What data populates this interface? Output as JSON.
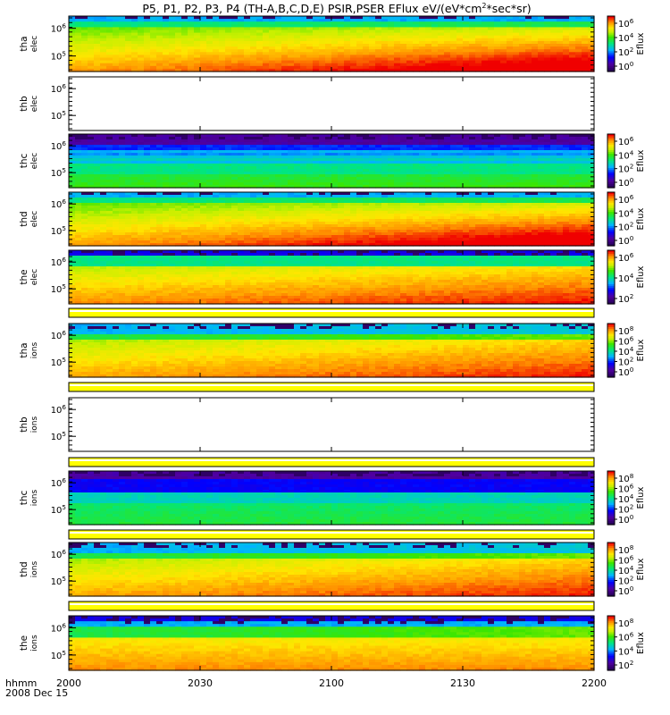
{
  "title": "P5, P1, P2, P3, P4 (TH-A,B,C,D,E) PSIR,PSER EFlux eV/(eV*cm",
  "title_sup": "2",
  "title_tail": "*sec*sr)",
  "colorbar_label": "Eflux",
  "footer": {
    "time_label": "hhmm",
    "date_label": "2008 Dec 15"
  },
  "chart_data": {
    "type": "heatmap",
    "x_ticks": [
      "2000",
      "2030",
      "2100",
      "2130",
      "2200"
    ],
    "panels": [
      {
        "probe": "tha",
        "species": "elec",
        "has_data": true,
        "scheme": "elec_strong",
        "y_ticks": [
          {
            "base": "10",
            "exp": "6"
          },
          {
            "base": "10",
            "exp": "5"
          }
        ],
        "cbar_ticks": [
          {
            "base": "10",
            "exp": "6"
          },
          {
            "base": "10",
            "exp": "4"
          },
          {
            "base": "10",
            "exp": "2"
          },
          {
            "base": "10",
            "exp": "0"
          }
        ]
      },
      {
        "probe": "thb",
        "species": "elec",
        "has_data": false,
        "scheme": "empty",
        "y_ticks": [
          {
            "base": "10",
            "exp": "6"
          },
          {
            "base": "10",
            "exp": "5"
          }
        ],
        "cbar_ticks": []
      },
      {
        "probe": "thc",
        "species": "elec",
        "has_data": true,
        "scheme": "elec_weak",
        "y_ticks": [
          {
            "base": "10",
            "exp": "6"
          },
          {
            "base": "10",
            "exp": "5"
          }
        ],
        "cbar_ticks": [
          {
            "base": "10",
            "exp": "6"
          },
          {
            "base": "10",
            "exp": "4"
          },
          {
            "base": "10",
            "exp": "2"
          },
          {
            "base": "10",
            "exp": "0"
          }
        ]
      },
      {
        "probe": "thd",
        "species": "elec",
        "has_data": true,
        "scheme": "elec_strong",
        "y_ticks": [
          {
            "base": "10",
            "exp": "6"
          },
          {
            "base": "10",
            "exp": "5"
          }
        ],
        "cbar_ticks": [
          {
            "base": "10",
            "exp": "6"
          },
          {
            "base": "10",
            "exp": "4"
          },
          {
            "base": "10",
            "exp": "2"
          },
          {
            "base": "10",
            "exp": "0"
          }
        ]
      },
      {
        "probe": "the",
        "species": "elec",
        "has_data": true,
        "scheme": "elec_medium",
        "y_ticks": [
          {
            "base": "10",
            "exp": "6"
          },
          {
            "base": "10",
            "exp": "5"
          }
        ],
        "cbar_ticks": [
          {
            "base": "10",
            "exp": "6"
          },
          {
            "base": "10",
            "exp": "4"
          },
          {
            "base": "10",
            "exp": "2"
          }
        ]
      },
      {
        "probe": "tha",
        "species": "ions",
        "has_data": true,
        "scheme": "ions_medium",
        "y_ticks": [
          {
            "base": "10",
            "exp": "6"
          },
          {
            "base": "10",
            "exp": "5"
          }
        ],
        "cbar_ticks": [
          {
            "base": "10",
            "exp": "8"
          },
          {
            "base": "10",
            "exp": "6"
          },
          {
            "base": "10",
            "exp": "4"
          },
          {
            "base": "10",
            "exp": "2"
          },
          {
            "base": "10",
            "exp": "0"
          }
        ]
      },
      {
        "probe": "thb",
        "species": "ions",
        "has_data": false,
        "scheme": "empty",
        "y_ticks": [
          {
            "base": "10",
            "exp": "6"
          },
          {
            "base": "10",
            "exp": "5"
          }
        ],
        "cbar_ticks": []
      },
      {
        "probe": "thc",
        "species": "ions",
        "has_data": true,
        "scheme": "ions_weak",
        "y_ticks": [
          {
            "base": "10",
            "exp": "6"
          },
          {
            "base": "10",
            "exp": "5"
          }
        ],
        "cbar_ticks": [
          {
            "base": "10",
            "exp": "8"
          },
          {
            "base": "10",
            "exp": "6"
          },
          {
            "base": "10",
            "exp": "4"
          },
          {
            "base": "10",
            "exp": "2"
          },
          {
            "base": "10",
            "exp": "0"
          }
        ]
      },
      {
        "probe": "thd",
        "species": "ions",
        "has_data": true,
        "scheme": "ions_medium",
        "y_ticks": [
          {
            "base": "10",
            "exp": "6"
          },
          {
            "base": "10",
            "exp": "5"
          }
        ],
        "cbar_ticks": [
          {
            "base": "10",
            "exp": "8"
          },
          {
            "base": "10",
            "exp": "6"
          },
          {
            "base": "10",
            "exp": "4"
          },
          {
            "base": "10",
            "exp": "2"
          },
          {
            "base": "10",
            "exp": "0"
          }
        ]
      },
      {
        "probe": "the",
        "species": "ions",
        "has_data": true,
        "scheme": "ions_strong",
        "y_ticks": [
          {
            "base": "10",
            "exp": "6"
          },
          {
            "base": "10",
            "exp": "5"
          }
        ],
        "cbar_ticks": [
          {
            "base": "10",
            "exp": "8"
          },
          {
            "base": "10",
            "exp": "6"
          },
          {
            "base": "10",
            "exp": "4"
          },
          {
            "base": "10",
            "exp": "2"
          }
        ]
      }
    ]
  }
}
